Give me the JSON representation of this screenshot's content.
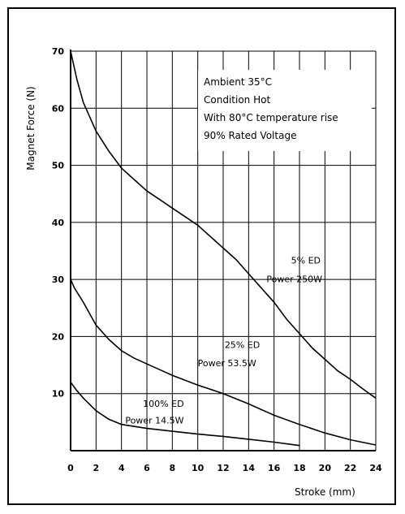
{
  "chart_data": {
    "type": "line",
    "xlabel": "Stroke (mm)",
    "ylabel": "Magnet Force (N)",
    "xlim": [
      0,
      24
    ],
    "ylim": [
      0,
      70
    ],
    "x_ticks": [
      "0",
      "2",
      "4",
      "6",
      "8",
      "10",
      "12",
      "14",
      "16",
      "18",
      "20",
      "22",
      "24"
    ],
    "y_ticks": [
      "10",
      "20",
      "30",
      "40",
      "50",
      "60",
      "70"
    ],
    "grid": true,
    "annotations": [
      "Ambient 35°C",
      "Condition Hot",
      "With 80°C temperature rise",
      "90% Rated Voltage"
    ],
    "series": [
      {
        "name": "5% ED",
        "label_line1": "5% ED",
        "label_line2": "Power 250W",
        "points": [
          [
            0,
            70
          ],
          [
            0.5,
            65
          ],
          [
            1,
            61
          ],
          [
            2,
            56
          ],
          [
            3,
            52.5
          ],
          [
            4,
            49.5
          ],
          [
            5,
            47.5
          ],
          [
            6,
            45.5
          ],
          [
            7,
            44
          ],
          [
            8,
            42.5
          ],
          [
            9,
            41
          ],
          [
            10,
            39.5
          ],
          [
            11,
            37.5
          ],
          [
            12,
            35.5
          ],
          [
            13,
            33.5
          ],
          [
            14,
            31
          ],
          [
            15,
            28.5
          ],
          [
            16,
            26
          ],
          [
            17,
            23
          ],
          [
            18,
            20.5
          ],
          [
            19,
            18
          ],
          [
            20,
            16
          ],
          [
            21,
            14
          ],
          [
            22,
            12.5
          ],
          [
            23,
            10.8
          ],
          [
            24,
            9.2
          ]
        ]
      },
      {
        "name": "25% ED",
        "label_line1": "25% ED",
        "label_line2": "Power 53.5W",
        "points": [
          [
            0,
            30
          ],
          [
            0.3,
            28.5
          ],
          [
            1,
            26
          ],
          [
            2,
            22
          ],
          [
            3,
            19.5
          ],
          [
            4,
            17.5
          ],
          [
            5,
            16.2
          ],
          [
            6,
            15.2
          ],
          [
            7,
            14.2
          ],
          [
            8,
            13.2
          ],
          [
            10,
            11.5
          ],
          [
            12,
            10
          ],
          [
            14,
            8.2
          ],
          [
            16,
            6.2
          ],
          [
            18,
            4.6
          ],
          [
            20,
            3.1
          ],
          [
            22,
            1.9
          ],
          [
            24,
            1
          ]
        ]
      },
      {
        "name": "100% ED",
        "label_line1": "100% ED",
        "label_line2": "Power 14.5W",
        "points": [
          [
            0,
            12
          ],
          [
            0.5,
            10.5
          ],
          [
            1,
            9.2
          ],
          [
            2,
            7
          ],
          [
            3,
            5.5
          ],
          [
            4,
            4.6
          ],
          [
            6,
            3.9
          ],
          [
            8,
            3.4
          ],
          [
            10,
            2.9
          ],
          [
            12,
            2.5
          ],
          [
            14,
            2
          ],
          [
            16,
            1.5
          ],
          [
            18,
            0.9
          ]
        ]
      }
    ]
  }
}
